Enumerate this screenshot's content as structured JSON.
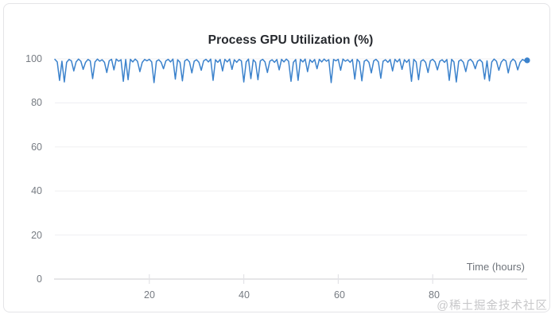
{
  "page": {
    "watermark": "@稀土掘金技术社区"
  },
  "chart_data": {
    "type": "line",
    "title": "Process GPU Utilization (%)",
    "xlabel": "Time (hours)",
    "ylabel": "Process GPU Utilization (%)",
    "xlim": [
      0,
      100
    ],
    "ylim": [
      0,
      100
    ],
    "x_ticks": [
      20,
      40,
      60,
      80
    ],
    "y_ticks": [
      100,
      80,
      60,
      40,
      20,
      0
    ],
    "grid": "horizontal-only",
    "legend_position": "none",
    "line_color": "#3b82cc",
    "series": [
      {
        "name": "Process GPU Utilization (%)",
        "color": "#3b82cc",
        "x_start": 0,
        "x_step_hours": 0.5,
        "end_marker": true,
        "values": [
          99.8,
          98.6,
          90.2,
          98.9,
          89.5,
          98.4,
          99.7,
          99.1,
          94.5,
          98.6,
          99.9,
          98.9,
          95.2,
          98.4,
          99.7,
          99.1,
          91.0,
          98.6,
          99.9,
          98.9,
          99.6,
          98.4,
          93.8,
          99.1,
          99.8,
          95.0,
          99.9,
          98.9,
          99.6,
          89.8,
          99.7,
          90.5,
          99.8,
          98.6,
          99.9,
          98.9,
          94.2,
          98.4,
          99.7,
          99.1,
          99.8,
          98.6,
          89.2,
          98.9,
          99.6,
          98.4,
          95.5,
          99.1,
          99.8,
          98.6,
          99.9,
          90.8,
          99.6,
          98.4,
          90.0,
          99.1,
          99.8,
          98.6,
          93.6,
          98.9,
          99.6,
          98.4,
          94.8,
          99.1,
          99.8,
          98.6,
          99.9,
          90.2,
          99.6,
          98.4,
          99.7,
          94.5,
          99.8,
          98.6,
          99.9,
          95.2,
          99.6,
          98.4,
          99.7,
          99.1,
          89.5,
          98.6,
          99.9,
          91.0,
          99.6,
          98.4,
          90.5,
          99.1,
          99.8,
          98.6,
          93.8,
          98.9,
          99.6,
          98.4,
          99.7,
          95.0,
          99.8,
          98.6,
          99.9,
          98.9,
          89.8,
          98.4,
          99.7,
          90.2,
          99.8,
          98.6,
          99.9,
          94.2,
          99.6,
          98.4,
          99.7,
          95.5,
          99.8,
          98.6,
          99.9,
          98.9,
          99.6,
          89.2,
          99.7,
          99.1,
          99.8,
          94.8,
          99.9,
          98.9,
          99.6,
          98.4,
          99.7,
          90.8,
          99.8,
          98.6,
          90.0,
          98.9,
          99.6,
          98.4,
          93.6,
          99.1,
          99.8,
          98.6,
          91.2,
          98.9,
          99.6,
          98.4,
          99.7,
          94.5,
          99.8,
          98.6,
          99.9,
          95.2,
          99.6,
          98.4,
          99.7,
          89.8,
          99.8,
          98.6,
          90.5,
          98.9,
          99.6,
          98.4,
          93.8,
          99.1,
          99.8,
          98.6,
          95.0,
          98.9,
          99.6,
          98.4,
          99.7,
          90.2,
          99.8,
          98.6,
          89.5,
          98.9,
          99.6,
          98.4,
          94.2,
          99.1,
          99.8,
          98.6,
          95.5,
          98.9,
          99.6,
          98.4,
          90.8,
          99.1,
          90.0,
          98.6,
          99.9,
          98.9,
          94.8,
          98.4,
          99.7,
          99.1,
          93.6,
          98.6,
          99.9,
          98.9,
          95.0,
          98.4,
          99.7,
          99.1,
          99.3
        ]
      }
    ]
  }
}
